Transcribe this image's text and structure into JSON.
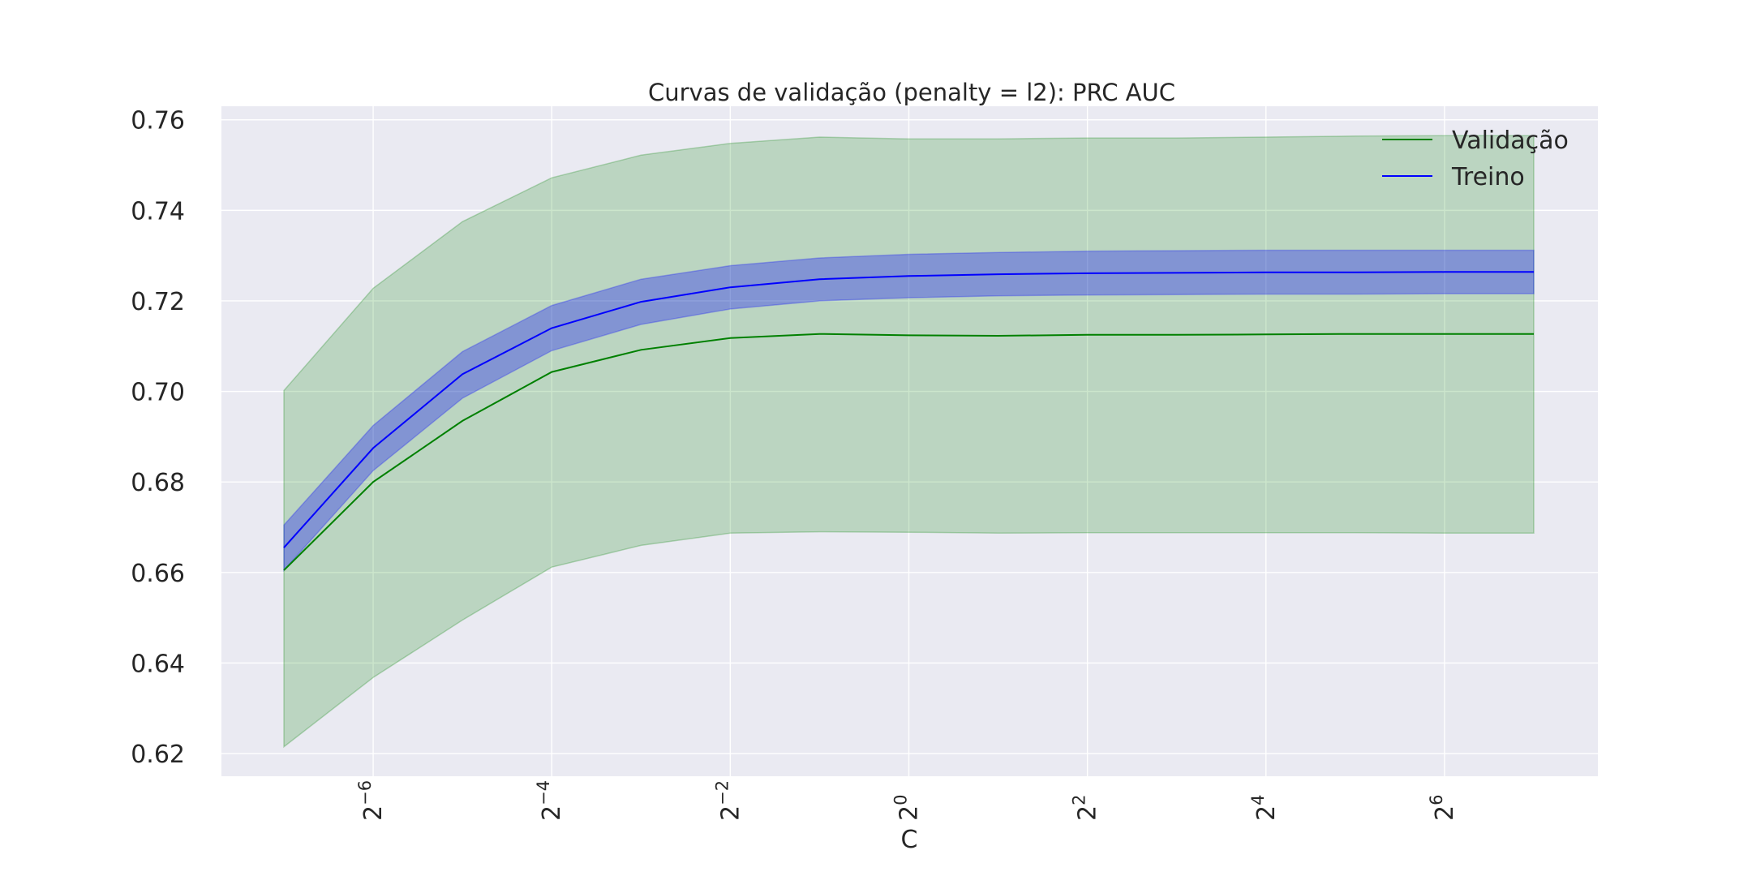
{
  "chart_data": {
    "type": "line",
    "title": "Curvas de validação (penalty = l2): PRC AUC",
    "xlabel": "C",
    "ylabel": "",
    "x_scale": "log2",
    "x": [
      0.0078125,
      0.015625,
      0.03125,
      0.0625,
      0.125,
      0.25,
      0.5,
      1,
      2,
      4,
      8,
      16,
      32,
      64,
      128
    ],
    "x_ticks": [
      {
        "value": 0.015625,
        "base": "2",
        "exp": "−6"
      },
      {
        "value": 0.0625,
        "base": "2",
        "exp": "−4"
      },
      {
        "value": 0.25,
        "base": "2",
        "exp": "−2"
      },
      {
        "value": 1,
        "base": "2",
        "exp": "0"
      },
      {
        "value": 4,
        "base": "2",
        "exp": "2"
      },
      {
        "value": 16,
        "base": "2",
        "exp": "4"
      },
      {
        "value": 64,
        "base": "2",
        "exp": "6"
      }
    ],
    "y_ticks": [
      "0.62",
      "0.64",
      "0.66",
      "0.68",
      "0.70",
      "0.72",
      "0.74",
      "0.76"
    ],
    "ylim": [
      0.615,
      0.763
    ],
    "grid": true,
    "legend_position": "top-right",
    "series": [
      {
        "name": "Validação",
        "color": "#008000",
        "values": [
          0.6605,
          0.68,
          0.6935,
          0.7043,
          0.7092,
          0.7118,
          0.7127,
          0.7124,
          0.7123,
          0.7125,
          0.7125,
          0.7126,
          0.7127,
          0.7127,
          0.7127
        ],
        "upper": [
          0.7002,
          0.7228,
          0.7375,
          0.7472,
          0.7522,
          0.7548,
          0.7562,
          0.7558,
          0.7558,
          0.756,
          0.756,
          0.7562,
          0.7564,
          0.7565,
          0.7565
        ],
        "lower": [
          0.6215,
          0.6368,
          0.6495,
          0.6612,
          0.666,
          0.6687,
          0.669,
          0.6689,
          0.6687,
          0.6688,
          0.6688,
          0.6688,
          0.6688,
          0.6687,
          0.6687
        ]
      },
      {
        "name": "Treino",
        "color": "#0000ff",
        "values": [
          0.6655,
          0.6875,
          0.7038,
          0.714,
          0.7198,
          0.723,
          0.7248,
          0.7255,
          0.7259,
          0.7261,
          0.7262,
          0.7263,
          0.7263,
          0.7264,
          0.7264
        ],
        "upper": [
          0.6705,
          0.6925,
          0.7088,
          0.719,
          0.7248,
          0.7278,
          0.7295,
          0.7303,
          0.7307,
          0.731,
          0.7311,
          0.7312,
          0.7312,
          0.7312,
          0.7312
        ],
        "lower": [
          0.6605,
          0.6825,
          0.6985,
          0.709,
          0.7148,
          0.7182,
          0.72,
          0.7207,
          0.7211,
          0.7213,
          0.7214,
          0.7215,
          0.7215,
          0.7216,
          0.7216
        ]
      }
    ]
  }
}
